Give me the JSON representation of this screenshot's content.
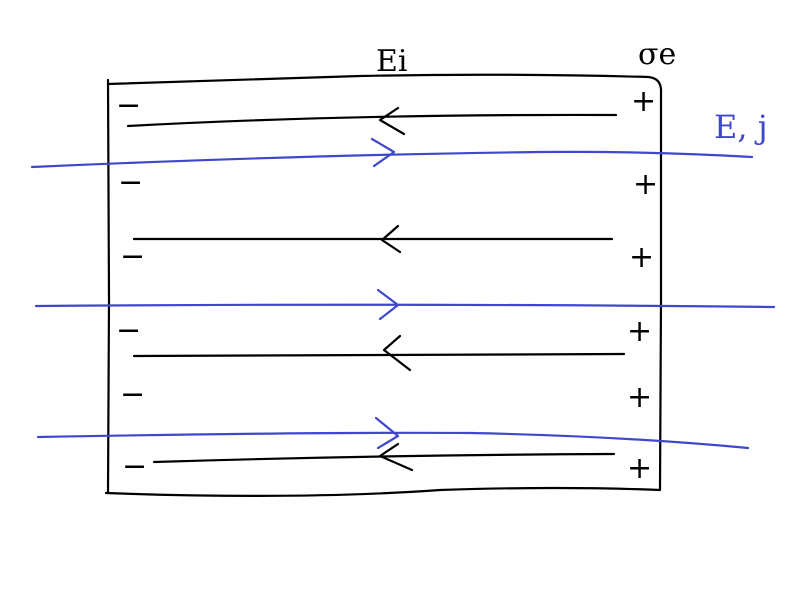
{
  "labels": {
    "internal_field": "Ei",
    "surface_charge": "σe",
    "external_field": "E, j"
  },
  "charges": {
    "left_sign": "−",
    "right_sign": "+"
  },
  "colors": {
    "ink": "#000000",
    "field_blue": "#3f48cc"
  }
}
